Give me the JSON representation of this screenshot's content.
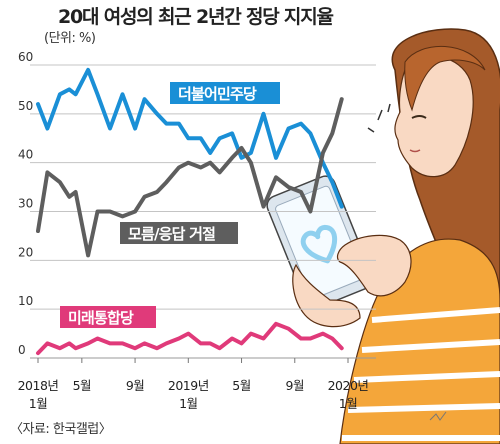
{
  "header": {
    "title": "20대 여성의 최근 2년간 정당 지지율",
    "unit": "(단위: %)"
  },
  "footer": {
    "source": "〈자료: 한국갤럽〉"
  },
  "illustration": {
    "subject": "woman-using-smartphone",
    "heart-color": "#8fd0ef",
    "shirt-colors": [
      "#f4a63a",
      "#ffffff"
    ],
    "hair-color": "#a55a2a"
  },
  "chart_data": {
    "type": "line",
    "title": "20대 여성의 최근 2년간 정당 지지율",
    "ylabel": "",
    "xlabel": "",
    "ylim": [
      0,
      60
    ],
    "yticks": [
      0,
      10,
      20,
      30,
      40,
      50,
      60
    ],
    "grid": true,
    "x_ticks": [
      {
        "index": 0,
        "line1": "2018년",
        "line2": "1월"
      },
      {
        "index": 14,
        "line1": "5월",
        "line2": ""
      },
      {
        "index": 31,
        "line1": "9월",
        "line2": ""
      },
      {
        "index": 48,
        "line1": "2019년",
        "line2": "1월"
      },
      {
        "index": 65,
        "line1": "5월",
        "line2": ""
      },
      {
        "index": 82,
        "line1": "9월",
        "line2": ""
      },
      {
        "index": 99,
        "line1": "2020년",
        "line2": "1월"
      }
    ],
    "series": [
      {
        "name": "더불어민주당",
        "color": "#1a8fd6",
        "label_bg": "#1a8fd6",
        "values": [
          [
            0,
            52
          ],
          [
            3,
            47
          ],
          [
            7,
            54
          ],
          [
            10,
            55
          ],
          [
            12,
            54
          ],
          [
            16,
            59
          ],
          [
            19,
            54
          ],
          [
            23,
            47
          ],
          [
            27,
            54
          ],
          [
            31,
            47
          ],
          [
            34,
            53
          ],
          [
            38,
            50
          ],
          [
            41,
            48
          ],
          [
            45,
            48
          ],
          [
            48,
            45
          ],
          [
            52,
            45
          ],
          [
            55,
            42
          ],
          [
            58,
            45
          ],
          [
            62,
            46
          ],
          [
            65,
            41
          ],
          [
            68,
            42
          ],
          [
            72,
            50
          ],
          [
            76,
            41
          ],
          [
            80,
            47
          ],
          [
            84,
            48
          ],
          [
            87,
            46
          ],
          [
            91,
            40
          ],
          [
            94,
            36
          ],
          [
            97,
            31
          ]
        ]
      },
      {
        "name": "모름/응답 거절",
        "color": "#5e5e5e",
        "label_bg": "#5e5e5e",
        "values": [
          [
            0,
            26
          ],
          [
            3,
            38
          ],
          [
            7,
            36
          ],
          [
            10,
            33
          ],
          [
            12,
            34
          ],
          [
            16,
            21
          ],
          [
            19,
            30
          ],
          [
            23,
            30
          ],
          [
            27,
            29
          ],
          [
            31,
            30
          ],
          [
            34,
            33
          ],
          [
            38,
            34
          ],
          [
            41,
            36
          ],
          [
            45,
            39
          ],
          [
            48,
            40
          ],
          [
            52,
            39
          ],
          [
            55,
            40
          ],
          [
            58,
            38
          ],
          [
            62,
            41
          ],
          [
            65,
            43
          ],
          [
            68,
            40
          ],
          [
            72,
            31
          ],
          [
            76,
            37
          ],
          [
            80,
            35
          ],
          [
            84,
            34
          ],
          [
            87,
            30
          ],
          [
            91,
            42
          ],
          [
            94,
            46
          ],
          [
            97,
            53
          ]
        ]
      },
      {
        "name": "미래통합당",
        "color": "#e03a7a",
        "label_bg": "#e03a7a",
        "values": [
          [
            0,
            1
          ],
          [
            3,
            3
          ],
          [
            7,
            2
          ],
          [
            10,
            3
          ],
          [
            12,
            2
          ],
          [
            16,
            3
          ],
          [
            19,
            4
          ],
          [
            23,
            3
          ],
          [
            27,
            3
          ],
          [
            31,
            2
          ],
          [
            34,
            3
          ],
          [
            38,
            2
          ],
          [
            41,
            3
          ],
          [
            45,
            4
          ],
          [
            48,
            5
          ],
          [
            52,
            3
          ],
          [
            55,
            3
          ],
          [
            58,
            2
          ],
          [
            62,
            4
          ],
          [
            65,
            3
          ],
          [
            68,
            5
          ],
          [
            72,
            4
          ],
          [
            76,
            7
          ],
          [
            80,
            6
          ],
          [
            84,
            4
          ],
          [
            87,
            4
          ],
          [
            91,
            5
          ],
          [
            94,
            4
          ],
          [
            97,
            2
          ]
        ]
      }
    ]
  }
}
